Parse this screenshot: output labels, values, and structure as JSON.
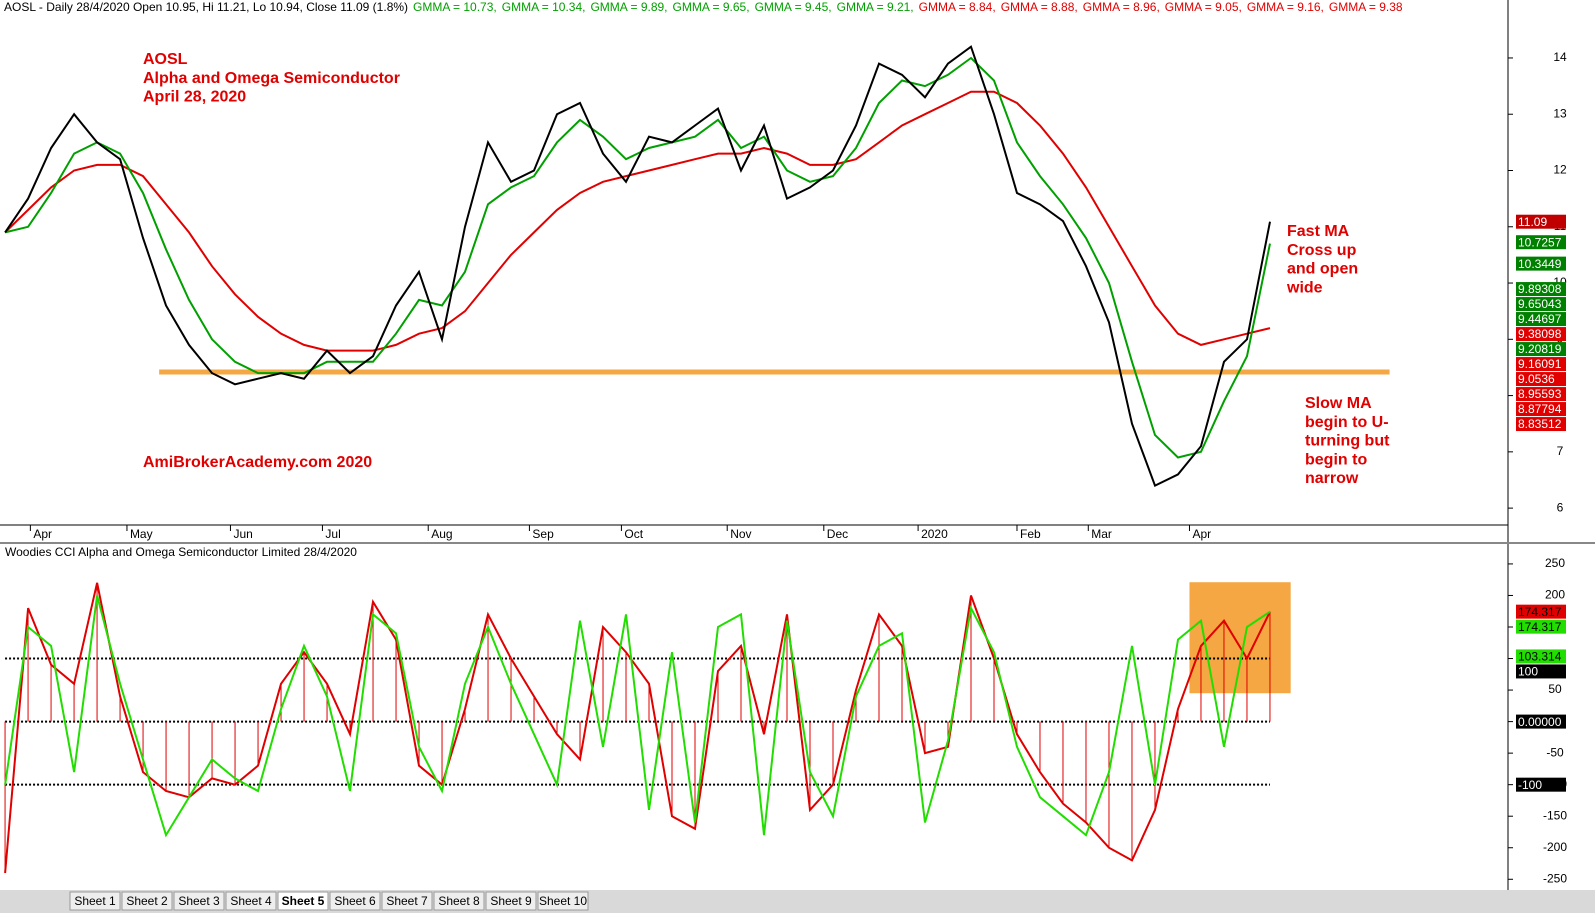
{
  "chart_data": [
    {
      "type": "line",
      "header": "AOSL - Daily 28/4/2020 Open 10.95, Hi 11.21, Lo 10.94, Close 11.09 (1.8%)",
      "gmma": [
        {
          "label": "GMMA = 10.73,",
          "color": "#00a000"
        },
        {
          "label": "GMMA = 10.34,",
          "color": "#00a000"
        },
        {
          "label": "GMMA = 9.89,",
          "color": "#00a000"
        },
        {
          "label": "GMMA = 9.65,",
          "color": "#00a000"
        },
        {
          "label": "GMMA = 9.45,",
          "color": "#00a000"
        },
        {
          "label": "GMMA = 9.21,",
          "color": "#00a000"
        },
        {
          "label": "GMMA = 8.84,",
          "color": "#e00000"
        },
        {
          "label": "GMMA = 8.88,",
          "color": "#e00000"
        },
        {
          "label": "GMMA = 8.96,",
          "color": "#e00000"
        },
        {
          "label": "GMMA = 9.05,",
          "color": "#e00000"
        },
        {
          "label": "GMMA = 9.16,",
          "color": "#e00000"
        },
        {
          "label": "GMMA = 9.38",
          "color": "#e00000"
        }
      ],
      "annotations": [
        [
          "AOSL",
          "Alpha and Omega Semiconductor",
          "April 28, 2020"
        ],
        [
          "AmiBrokerAcademy.com   2020"
        ],
        [
          "Fast MA",
          "Cross up",
          "and open",
          "wide"
        ],
        [
          "Slow MA",
          "begin to U-",
          "turning but",
          "begin to",
          "narrow"
        ]
      ],
      "x": [
        0,
        1,
        2,
        3,
        4,
        5,
        6,
        7,
        8,
        9,
        10,
        11,
        12,
        13,
        14,
        15,
        16,
        17,
        18,
        19,
        20,
        21,
        22,
        23,
        24,
        25,
        26,
        27,
        28,
        29,
        30,
        31,
        32,
        33,
        34,
        35,
        36,
        37,
        38,
        39,
        40,
        41,
        42,
        43,
        44,
        45,
        46,
        47,
        48,
        49,
        50,
        51,
        52,
        53,
        54,
        55
      ],
      "series": [
        {
          "color": "#e00000",
          "values": [
            10.9,
            11.3,
            11.7,
            12.0,
            12.1,
            12.1,
            11.9,
            11.4,
            10.9,
            10.3,
            9.8,
            9.4,
            9.1,
            8.9,
            8.8,
            8.8,
            8.8,
            8.9,
            9.1,
            9.2,
            9.5,
            10.0,
            10.5,
            10.9,
            11.3,
            11.6,
            11.8,
            11.9,
            12.0,
            12.1,
            12.2,
            12.3,
            12.3,
            12.4,
            12.3,
            12.1,
            12.1,
            12.2,
            12.5,
            12.8,
            13.0,
            13.2,
            13.4,
            13.4,
            13.2,
            12.8,
            12.3,
            11.7,
            11.0,
            10.3,
            9.6,
            9.1,
            8.9,
            9.0,
            9.1,
            9.2
          ]
        },
        {
          "color": "#00a000",
          "values": [
            10.9,
            11.0,
            11.6,
            12.3,
            12.5,
            12.3,
            11.6,
            10.6,
            9.7,
            9.0,
            8.6,
            8.4,
            8.4,
            8.4,
            8.6,
            8.6,
            8.6,
            9.1,
            9.7,
            9.6,
            10.2,
            11.4,
            11.7,
            11.9,
            12.5,
            12.9,
            12.6,
            12.2,
            12.4,
            12.5,
            12.6,
            12.9,
            12.4,
            12.6,
            12.0,
            11.8,
            11.9,
            12.4,
            13.2,
            13.6,
            13.5,
            13.7,
            14.0,
            13.6,
            12.5,
            11.9,
            11.4,
            10.8,
            10.0,
            8.6,
            7.3,
            6.9,
            7.0,
            7.9,
            8.7,
            10.7
          ]
        },
        {
          "color": "#000000",
          "values": [
            10.9,
            11.5,
            12.4,
            13.0,
            12.5,
            12.2,
            10.8,
            9.6,
            8.9,
            8.4,
            8.2,
            8.3,
            8.4,
            8.3,
            8.8,
            8.4,
            8.7,
            9.6,
            10.2,
            9.0,
            11.0,
            12.5,
            11.8,
            12.0,
            13.0,
            13.2,
            12.3,
            11.8,
            12.6,
            12.5,
            12.8,
            13.1,
            12.0,
            12.8,
            11.5,
            11.7,
            12.0,
            12.8,
            13.9,
            13.7,
            13.3,
            13.9,
            14.2,
            13.0,
            11.6,
            11.4,
            11.1,
            10.3,
            9.3,
            7.5,
            6.4,
            6.6,
            7.1,
            8.6,
            9.0,
            11.09
          ]
        }
      ],
      "support": {
        "y": 8.42,
        "x": [
          6.7,
          60.2
        ],
        "color": "#f4a742"
      },
      "xlim": [
        -0.22,
        65.35
      ],
      "xticks": [
        {
          "value": 1.1,
          "label": "Apr"
        },
        {
          "value": 5.3,
          "label": "May"
        },
        {
          "value": 9.8,
          "label": "Jun"
        },
        {
          "value": 13.8,
          "label": "Jul"
        },
        {
          "value": 18.4,
          "label": "Aug"
        },
        {
          "value": 22.8,
          "label": "Sep"
        },
        {
          "value": 26.8,
          "label": "Oct"
        },
        {
          "value": 31.4,
          "label": "Nov"
        },
        {
          "value": 35.6,
          "label": "Dec"
        },
        {
          "value": 39.7,
          "label": "2020"
        },
        {
          "value": 44,
          "label": "Feb"
        },
        {
          "value": 47.1,
          "label": "Mar"
        },
        {
          "value": 51.5,
          "label": "Apr"
        }
      ],
      "ylim": [
        5.7,
        15.03
      ],
      "yticks": [
        6,
        7,
        8,
        9,
        10,
        11,
        12,
        13,
        14
      ],
      "price_labels": [
        {
          "value": 11.09,
          "color": "#c00000"
        },
        {
          "value": 10.7257,
          "color": "#008000"
        },
        {
          "value": 10.3449,
          "color": "#008000"
        },
        {
          "value": 9.89308,
          "color": "#008000"
        },
        {
          "value": 9.65043,
          "color": "#008000"
        },
        {
          "value": 9.44697,
          "color": "#008000"
        },
        {
          "value": 9.38098,
          "color": "#e00000"
        },
        {
          "value": 9.20819,
          "color": "#008000"
        },
        {
          "value": 9.16091,
          "color": "#e00000"
        },
        {
          "value": 9.0536,
          "color": "#e00000"
        },
        {
          "value": 8.95593,
          "color": "#e00000"
        },
        {
          "value": 8.87794,
          "color": "#e00000"
        },
        {
          "value": 8.83512,
          "color": "#e00000"
        }
      ]
    },
    {
      "type": "cci",
      "title": "Woodies CCI  Alpha and Omega Semiconductor Limited 28/4/2020",
      "x": [
        0,
        1,
        2,
        3,
        4,
        5,
        6,
        7,
        8,
        9,
        10,
        11,
        12,
        13,
        14,
        15,
        16,
        17,
        18,
        19,
        20,
        21,
        22,
        23,
        24,
        25,
        26,
        27,
        28,
        29,
        30,
        31,
        32,
        33,
        34,
        35,
        36,
        37,
        38,
        39,
        40,
        41,
        42,
        43,
        44,
        45,
        46,
        47,
        48,
        49,
        50,
        51,
        52,
        53,
        54,
        55
      ],
      "series": [
        {
          "color": "#e00000",
          "values": [
            -240,
            180,
            90,
            60,
            220,
            40,
            -80,
            -110,
            -120,
            -90,
            -100,
            -70,
            60,
            110,
            60,
            -20,
            190,
            130,
            -70,
            -100,
            20,
            170,
            100,
            40,
            -20,
            -60,
            150,
            110,
            60,
            -150,
            -170,
            80,
            120,
            -20,
            170,
            -140,
            -100,
            50,
            170,
            120,
            -50,
            -40,
            200,
            100,
            -20,
            -80,
            -130,
            -160,
            -200,
            -220,
            -140,
            20,
            120,
            160,
            100,
            174.317
          ]
        },
        {
          "color": "#22dd00",
          "values": [
            -100,
            150,
            120,
            -80,
            200,
            60,
            -60,
            -180,
            -120,
            -60,
            -90,
            -110,
            20,
            120,
            40,
            -110,
            170,
            140,
            -40,
            -110,
            60,
            150,
            60,
            -20,
            -100,
            160,
            -40,
            170,
            -140,
            110,
            -160,
            150,
            170,
            -180,
            160,
            -80,
            -150,
            40,
            120,
            140,
            -160,
            -30,
            180,
            110,
            -40,
            -120,
            -150,
            -180,
            -80,
            120,
            -100,
            130,
            160,
            -40,
            150,
            174.317
          ]
        }
      ],
      "levels": [
        100,
        0,
        -100
      ],
      "highlight": {
        "x": [
          51.5,
          55.9
        ],
        "y": [
          45,
          221
        ],
        "color": "#f4a742"
      },
      "xlim": [
        -0.22,
        65.35
      ],
      "ylim": [
        -267,
        280
      ],
      "yticks": [
        -250,
        -200,
        -150,
        -100,
        -50,
        0,
        50,
        100,
        150,
        200,
        250
      ],
      "value_labels": [
        {
          "value": 174.317,
          "color": "#e00000"
        },
        {
          "value": 174.317,
          "color": "#22dd00"
        },
        {
          "value": 103.314,
          "color": "#22dd00"
        },
        {
          "value": 100,
          "color": "#000000"
        },
        {
          "value": 0,
          "label": "0.00000",
          "color": "#000000"
        },
        {
          "value": -100,
          "color": "#000000"
        }
      ]
    }
  ],
  "tabs": [
    "Sheet 1",
    "Sheet 2",
    "Sheet 3",
    "Sheet 4",
    "Sheet 5",
    "Sheet 6",
    "Sheet 7",
    "Sheet 8",
    "Sheet 9",
    "Sheet 10"
  ]
}
